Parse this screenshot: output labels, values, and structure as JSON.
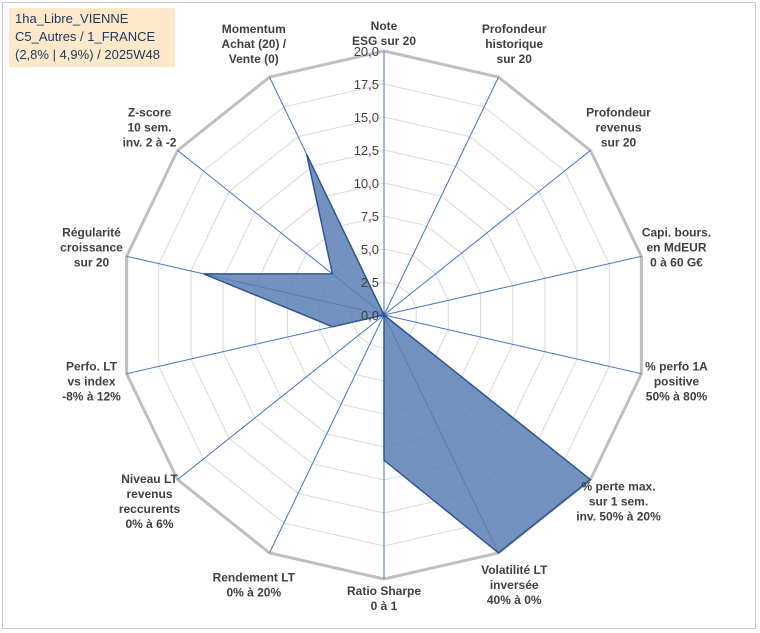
{
  "info": {
    "line1": "1ha_Libre_VIENNE",
    "line2": "C5_Autres / 1_FRANCE",
    "line3": "(2,8% | 4,9%) / 2025W48"
  },
  "chart_data": {
    "type": "radar",
    "categories": [
      "Note\nESG sur 20",
      "Profondeur\nhistorique\nsur 20",
      "Profondeur\nrevenus\nsur 20",
      "Capi. bours.\nen MdEUR\n0 à 60 G€",
      "% perfo 1A\npositive\n50% à 80%",
      "% perte max.\nsur 1 sem.\ninv. 50% à 20%",
      "Volatilité LT\ninversée\n40% à 0%",
      "Ratio Sharpe\n0 à 1",
      "Rendement LT\n0% à 20%",
      "Niveau LT\nrevenus\nreccurents\n0% à 6%",
      "Perfo. LT\nvs index\n-8% à 12%",
      "Régularité\ncroissance\nsur 20",
      "Z-score\n10 sem.\ninv. 2 à -2",
      "Momentum\nAchat (20) /\nVente (0)"
    ],
    "values": [
      0,
      0,
      0,
      0,
      0,
      20,
      20,
      11,
      0,
      0,
      4,
      14,
      5,
      13.5
    ],
    "rlim": [
      0,
      20
    ],
    "ticks": [
      "0,0",
      "2,5",
      "5,0",
      "7,5",
      "10,0",
      "12,5",
      "15,0",
      "17,5",
      "20,0"
    ],
    "grid": true,
    "legend": "none",
    "fill_color": "#5a7fb5",
    "stroke_color": "#2f5597",
    "spoke_color": "#4472c4",
    "grid_color": "#d9d9d9",
    "outer_grid_color": "#bfbfbf"
  }
}
